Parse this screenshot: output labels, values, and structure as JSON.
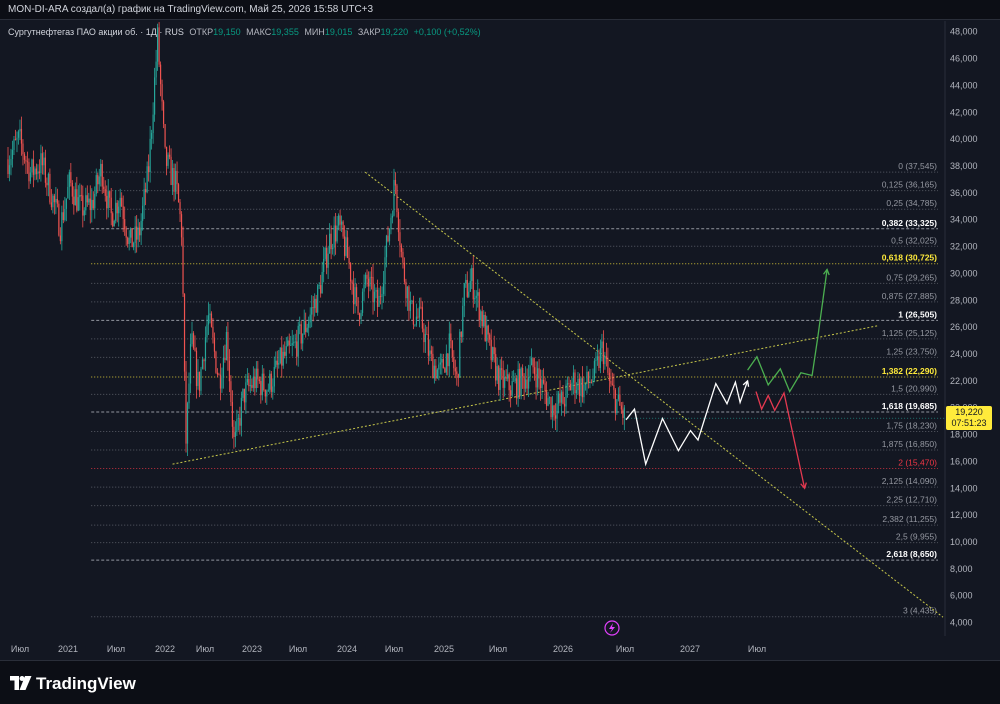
{
  "topbar": {
    "caption": "MON-DI-ARA создал(а) график на TradingView.com, Май 25, 2026 15:58 UTC+3"
  },
  "legend": {
    "symbol": "Сургутнефтегаз ПАО акции об. · 1Д · RUS",
    "open_label": "ОТКР",
    "open_value": "19,150",
    "high_label": "МАКС",
    "high_value": "19,355",
    "low_label": "МИН",
    "low_value": "19,015",
    "close_label": "ЗАКР",
    "close_value": "19,220",
    "change": "+0,100 (+0,52%)"
  },
  "price_tag": {
    "price": "19,220",
    "countdown": "07:51:23"
  },
  "footer": {
    "brand": "TradingView"
  },
  "colors": {
    "background": "#131722",
    "up": "#26a69a",
    "down": "#ef5350",
    "fib_highlight": "#ffeb3b",
    "trendline": "#c8c84a",
    "path_up": "#4caf50",
    "path_down": "#e53950",
    "path_base": "#ffffff"
  },
  "chart_data": {
    "type": "candlestick",
    "symbol": "Сургутнефтегаз ПАО акции об.",
    "interval": "1Д",
    "ylim": [
      3.0,
      48.8
    ],
    "yticks": [
      {
        "v": 48,
        "t": "48,000"
      },
      {
        "v": 46,
        "t": "46,000"
      },
      {
        "v": 44,
        "t": "44,000"
      },
      {
        "v": 42,
        "t": "42,000"
      },
      {
        "v": 40,
        "t": "40,000"
      },
      {
        "v": 38,
        "t": "38,000"
      },
      {
        "v": 36,
        "t": "36,000"
      },
      {
        "v": 34,
        "t": "34,000"
      },
      {
        "v": 32,
        "t": "32,000"
      },
      {
        "v": 30,
        "t": "30,000"
      },
      {
        "v": 28,
        "t": "28,000"
      },
      {
        "v": 26,
        "t": "26,000"
      },
      {
        "v": 24,
        "t": "24,000"
      },
      {
        "v": 22,
        "t": "22,000"
      },
      {
        "v": 20,
        "t": "20,000"
      },
      {
        "v": 18,
        "t": "18,000"
      },
      {
        "v": 16,
        "t": "16,000"
      },
      {
        "v": 14,
        "t": "14,000"
      },
      {
        "v": 12,
        "t": "12,000"
      },
      {
        "v": 10,
        "t": "10,000"
      },
      {
        "v": 8,
        "t": "8,000"
      },
      {
        "v": 6,
        "t": "6,000"
      },
      {
        "v": 4,
        "t": "4,000"
      }
    ],
    "xticks": [
      "Июл",
      "2021",
      "Июл",
      "2022",
      "Июл",
      "2023",
      "Июл",
      "2024",
      "Июл",
      "2025",
      "Июл",
      "2026",
      "Июл",
      "2027",
      "Июл"
    ],
    "fib_levels": [
      {
        "text": "0 (37,545)",
        "v": 37.545,
        "style": "normal"
      },
      {
        "text": "0,125 (36,165)",
        "v": 36.165,
        "style": "normal"
      },
      {
        "text": "0,25 (34,785)",
        "v": 34.785,
        "style": "normal"
      },
      {
        "text": "0,382 (33,325)",
        "v": 33.325,
        "style": "bold"
      },
      {
        "text": "0,5 (32,025)",
        "v": 32.025,
        "style": "normal"
      },
      {
        "text": "0,618 (30,725)",
        "v": 30.725,
        "style": "golden"
      },
      {
        "text": "0,75 (29,265)",
        "v": 29.265,
        "style": "normal"
      },
      {
        "text": "0,875 (27,885)",
        "v": 27.885,
        "style": "normal"
      },
      {
        "text": "1 (26,505)",
        "v": 26.505,
        "style": "bold"
      },
      {
        "text": "1,125 (25,125)",
        "v": 25.125,
        "style": "normal"
      },
      {
        "text": "1,25 (23,750)",
        "v": 23.75,
        "style": "normal"
      },
      {
        "text": "1,382 (22,290)",
        "v": 22.29,
        "style": "golden"
      },
      {
        "text": "1,5 (20,990)",
        "v": 20.99,
        "style": "normal"
      },
      {
        "text": "1,618 (19,685)",
        "v": 19.685,
        "style": "bold"
      },
      {
        "text": "1,75 (18,230)",
        "v": 18.23,
        "style": "normal"
      },
      {
        "text": "1,875 (16,850)",
        "v": 16.85,
        "style": "normal"
      },
      {
        "text": "2 (15,470)",
        "v": 15.47,
        "style": "red"
      },
      {
        "text": "2,125 (14,090)",
        "v": 14.09,
        "style": "normal"
      },
      {
        "text": "2,25 (12,710)",
        "v": 12.71,
        "style": "normal"
      },
      {
        "text": "2,382 (11,255)",
        "v": 11.255,
        "style": "normal"
      },
      {
        "text": "2,5 (9,955)",
        "v": 9.955,
        "style": "normal"
      },
      {
        "text": "2,618 (8,650)",
        "v": 8.65,
        "style": "bold"
      },
      {
        "text": "3 (4,435)",
        "v": 4.435,
        "style": "normal"
      }
    ],
    "last_price": 19.22,
    "price_path": [
      {
        "t": 0.0,
        "v": 38.5
      },
      {
        "t": 0.012,
        "v": 40.0
      },
      {
        "t": 0.024,
        "v": 37.5
      },
      {
        "t": 0.036,
        "v": 38.2
      },
      {
        "t": 0.048,
        "v": 35.5
      },
      {
        "t": 0.056,
        "v": 33.5
      },
      {
        "t": 0.066,
        "v": 36.8
      },
      {
        "t": 0.078,
        "v": 34.8
      },
      {
        "t": 0.09,
        "v": 35.2
      },
      {
        "t": 0.1,
        "v": 37.8
      },
      {
        "t": 0.11,
        "v": 34.2
      },
      {
        "t": 0.12,
        "v": 35.8
      },
      {
        "t": 0.13,
        "v": 32.2
      },
      {
        "t": 0.14,
        "v": 32.8
      },
      {
        "t": 0.15,
        "v": 37.5
      },
      {
        "t": 0.16,
        "v": 47.5
      },
      {
        "t": 0.168,
        "v": 38.5
      },
      {
        "t": 0.18,
        "v": 36.5
      },
      {
        "t": 0.186,
        "v": 33.0
      },
      {
        "t": 0.19,
        "v": 17.0
      },
      {
        "t": 0.196,
        "v": 25.0
      },
      {
        "t": 0.204,
        "v": 21.5
      },
      {
        "t": 0.214,
        "v": 26.8
      },
      {
        "t": 0.226,
        "v": 22.0
      },
      {
        "t": 0.234,
        "v": 25.5
      },
      {
        "t": 0.242,
        "v": 17.0
      },
      {
        "t": 0.252,
        "v": 21.0
      },
      {
        "t": 0.264,
        "v": 22.0
      },
      {
        "t": 0.278,
        "v": 21.5
      },
      {
        "t": 0.292,
        "v": 23.5
      },
      {
        "t": 0.306,
        "v": 24.5
      },
      {
        "t": 0.318,
        "v": 26.0
      },
      {
        "t": 0.332,
        "v": 28.5
      },
      {
        "t": 0.344,
        "v": 32.5
      },
      {
        "t": 0.354,
        "v": 33.5
      },
      {
        "t": 0.364,
        "v": 31.0
      },
      {
        "t": 0.374,
        "v": 27.0
      },
      {
        "t": 0.384,
        "v": 29.5
      },
      {
        "t": 0.396,
        "v": 27.5
      },
      {
        "t": 0.408,
        "v": 33.5
      },
      {
        "t": 0.414,
        "v": 37.0
      },
      {
        "t": 0.422,
        "v": 30.5
      },
      {
        "t": 0.432,
        "v": 27.0
      },
      {
        "t": 0.442,
        "v": 26.5
      },
      {
        "t": 0.452,
        "v": 23.5
      },
      {
        "t": 0.462,
        "v": 22.5
      },
      {
        "t": 0.472,
        "v": 24.5
      },
      {
        "t": 0.48,
        "v": 22.0
      },
      {
        "t": 0.488,
        "v": 28.5
      },
      {
        "t": 0.496,
        "v": 29.5
      },
      {
        "t": 0.506,
        "v": 27.0
      },
      {
        "t": 0.516,
        "v": 24.0
      },
      {
        "t": 0.526,
        "v": 22.0
      },
      {
        "t": 0.538,
        "v": 21.5
      },
      {
        "t": 0.55,
        "v": 22.0
      },
      {
        "t": 0.562,
        "v": 23.0
      },
      {
        "t": 0.572,
        "v": 21.5
      },
      {
        "t": 0.582,
        "v": 20.0
      },
      {
        "t": 0.594,
        "v": 20.5
      },
      {
        "t": 0.604,
        "v": 22.0
      },
      {
        "t": 0.616,
        "v": 21.5
      },
      {
        "t": 0.628,
        "v": 22.5
      },
      {
        "t": 0.636,
        "v": 24.5
      },
      {
        "t": 0.644,
        "v": 21.5
      },
      {
        "t": 0.654,
        "v": 20.0
      },
      {
        "t": 0.66,
        "v": 19.22
      }
    ],
    "projections": {
      "white": [
        [
          0.661,
          19.1
        ],
        [
          0.67,
          19.9
        ],
        [
          0.682,
          15.8
        ],
        [
          0.7,
          19.2
        ],
        [
          0.717,
          16.8
        ],
        [
          0.73,
          18.3
        ],
        [
          0.738,
          17.6
        ],
        [
          0.757,
          21.8
        ],
        [
          0.769,
          20.3
        ],
        [
          0.778,
          21.9
        ],
        [
          0.783,
          20.4
        ],
        [
          0.791,
          22.0
        ]
      ],
      "green": [
        [
          0.791,
          22.8
        ],
        [
          0.801,
          23.8
        ],
        [
          0.813,
          21.7
        ],
        [
          0.826,
          22.9
        ],
        [
          0.836,
          21.2
        ],
        [
          0.848,
          22.6
        ],
        [
          0.86,
          22.4
        ],
        [
          0.866,
          25.2
        ],
        [
          0.876,
          30.3
        ]
      ],
      "red": [
        [
          0.8,
          21.2
        ],
        [
          0.806,
          19.9
        ],
        [
          0.813,
          20.9
        ],
        [
          0.82,
          19.8
        ],
        [
          0.83,
          21.1
        ],
        [
          0.852,
          14.0
        ]
      ]
    },
    "trendlines": [
      {
        "t0": 0.382,
        "v0": 37.545,
        "t1": 1.0,
        "v1": 4.4
      },
      {
        "t0": 0.176,
        "v0": 15.8,
        "t1": 0.93,
        "v1": 26.1
      }
    ],
    "fib_anchor_t": 0.089
  }
}
